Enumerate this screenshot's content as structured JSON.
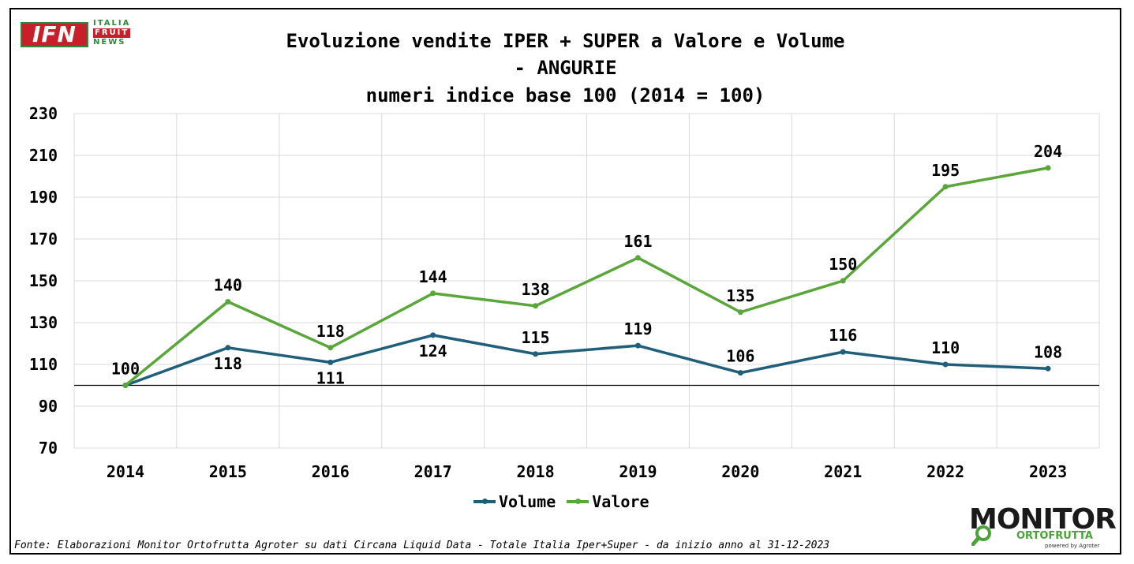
{
  "title_lines": [
    "Evoluzione vendite IPER + SUPER a Valore e Volume",
    "- ANGURIE",
    "numeri indice base 100 (2014 = 100)"
  ],
  "logo_ifn": {
    "main": "IFN",
    "line1": "ITALIA",
    "line2": "FRUIT",
    "line3": "NEWS",
    "colors": {
      "red": "#c8202a",
      "green": "#2a8a3a"
    }
  },
  "logo_monitor": {
    "main": "MONITOR",
    "sub": "ORTOFRUTTA",
    "powered": "powered by Agroter",
    "icon": "magnifier-icon"
  },
  "source": "Fonte: Elaborazioni Monitor Ortofrutta Agroter su dati Circana Liquid Data - Totale Italia Iper+Super -  da inizio anno al 31-12-2023",
  "chart_data": {
    "type": "line",
    "title": "Evoluzione vendite IPER + SUPER a Valore e Volume - ANGURIE numeri indice base 100 (2014 = 100)",
    "categories": [
      "2014",
      "2015",
      "2016",
      "2017",
      "2018",
      "2019",
      "2020",
      "2021",
      "2022",
      "2023"
    ],
    "series": [
      {
        "name": "Volume",
        "color": "#1f5f7a",
        "values": [
          100,
          118,
          111,
          124,
          115,
          119,
          106,
          116,
          110,
          108
        ],
        "labels": [
          "",
          "118",
          "111",
          "124",
          "115",
          "119",
          "106",
          "116",
          "110",
          "108"
        ],
        "label_side": [
          "",
          "below",
          "below",
          "below",
          "above",
          "above",
          "above",
          "above",
          "above",
          "above"
        ]
      },
      {
        "name": "Valore",
        "color": "#5aa63a",
        "values": [
          100,
          140,
          118,
          144,
          138,
          161,
          135,
          150,
          195,
          204
        ],
        "labels": [
          "100",
          "140",
          "118",
          "144",
          "138",
          "161",
          "135",
          "150",
          "195",
          "204"
        ],
        "label_side": [
          "above",
          "above",
          "above",
          "above",
          "above",
          "above",
          "above",
          "above",
          "above",
          "above"
        ]
      }
    ],
    "ylim": [
      70,
      230
    ],
    "yticks": [
      "70",
      "90",
      "110",
      "130",
      "150",
      "170",
      "190",
      "210",
      "230"
    ],
    "baseline": 100,
    "grid": true,
    "legend": "bottom-center"
  }
}
